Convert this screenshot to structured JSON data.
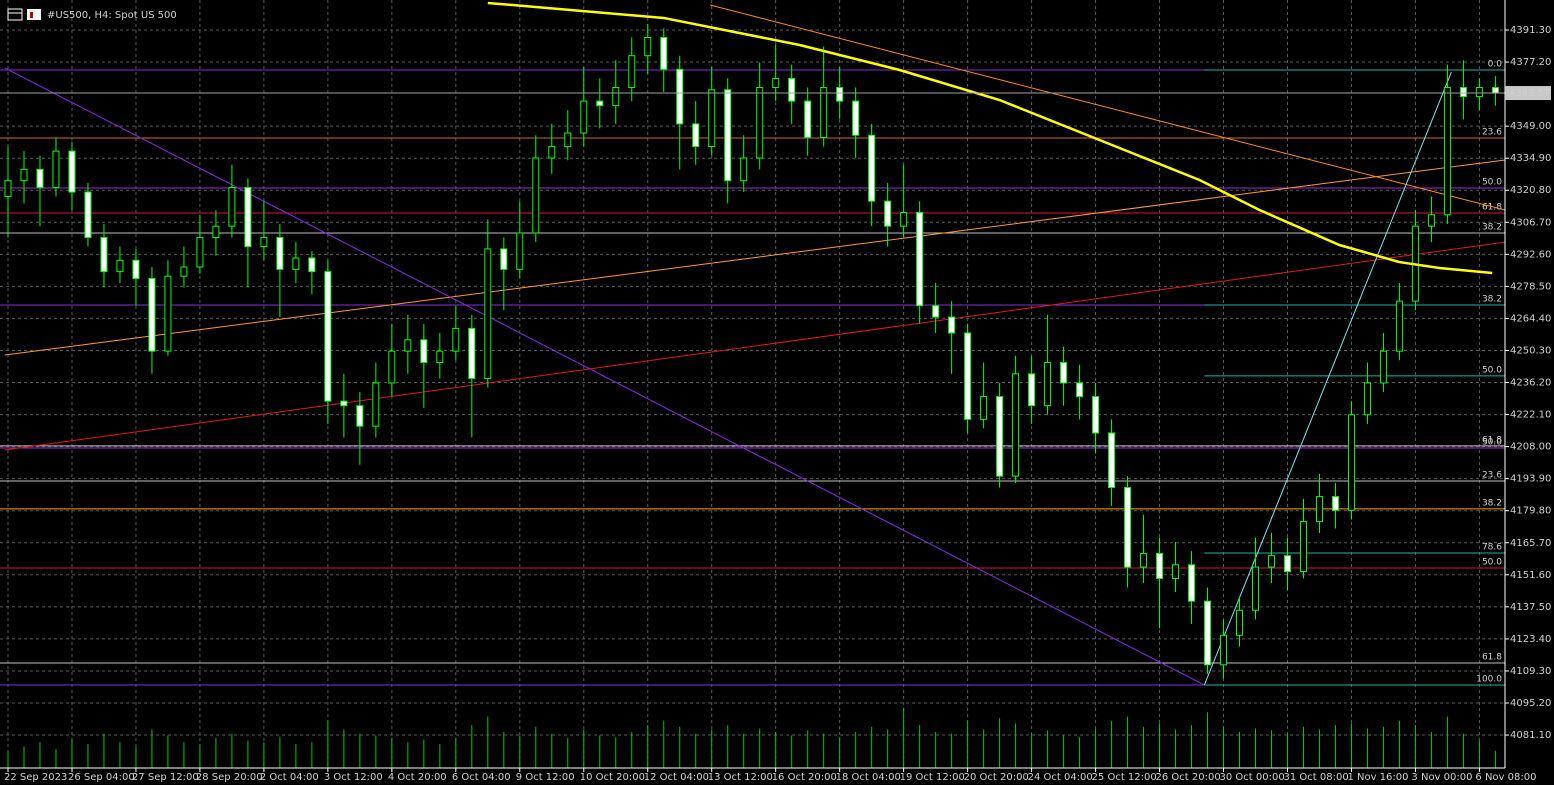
{
  "chart_data": {
    "type": "candlestick",
    "title": "#US500, H4:  Spot US 500",
    "xlim": [
      -0.5,
      93.6
    ],
    "ylim": [
      4066.6,
      4404.5
    ],
    "grid": true,
    "bull_fill": "#000000",
    "bear_fill": "#ffffff",
    "wick_color": "#00ff00",
    "volume_color": "#00c800",
    "current_price": 4363.57,
    "xticks": [
      {
        "value": 0,
        "label": "22 Sep 2023"
      },
      {
        "value": 4,
        "label": "26 Sep 04:00"
      },
      {
        "value": 8,
        "label": "27 Sep 12:00"
      },
      {
        "value": 12,
        "label": "28 Sep 20:00"
      },
      {
        "value": 16,
        "label": "2 Oct 04:00"
      },
      {
        "value": 20,
        "label": "3 Oct 12:00"
      },
      {
        "value": 24,
        "label": "4 Oct 20:00"
      },
      {
        "value": 28,
        "label": "6 Oct 04:00"
      },
      {
        "value": 32,
        "label": "9 Oct 12:00"
      },
      {
        "value": 36,
        "label": "10 Oct 20:00"
      },
      {
        "value": 40,
        "label": "12 Oct 04:00"
      },
      {
        "value": 44,
        "label": "13 Oct 12:00"
      },
      {
        "value": 48,
        "label": "16 Oct 20:00"
      },
      {
        "value": 52,
        "label": "18 Oct 04:00"
      },
      {
        "value": 56,
        "label": "19 Oct 12:00"
      },
      {
        "value": 60,
        "label": "20 Oct 20:00"
      },
      {
        "value": 64,
        "label": "24 Oct 04:00"
      },
      {
        "value": 68,
        "label": "25 Oct 12:00"
      },
      {
        "value": 72,
        "label": "26 Oct 20:00"
      },
      {
        "value": 76,
        "label": "30 Oct 00:00"
      },
      {
        "value": 80,
        "label": "31 Oct 08:00"
      },
      {
        "value": 84,
        "label": "1 Nov 16:00"
      },
      {
        "value": 88,
        "label": "3 Nov 00:00"
      },
      {
        "value": 92,
        "label": "6 Nov 08:00"
      }
    ],
    "yticks": [
      {
        "value": 4391.3,
        "label": "4391.30"
      },
      {
        "value": 4377.2,
        "label": "4377.20"
      },
      {
        "value": 4349,
        "label": "4349.00"
      },
      {
        "value": 4334.9,
        "label": "4334.90"
      },
      {
        "value": 4320.8,
        "label": "4320.80"
      },
      {
        "value": 4306.7,
        "label": "4306.70"
      },
      {
        "value": 4292.6,
        "label": "4292.60"
      },
      {
        "value": 4278.5,
        "label": "4278.50"
      },
      {
        "value": 4264.4,
        "label": "4264.40"
      },
      {
        "value": 4250.3,
        "label": "4250.30"
      },
      {
        "value": 4236.2,
        "label": "4236.20"
      },
      {
        "value": 4222.1,
        "label": "4222.10"
      },
      {
        "value": 4208,
        "label": "4208.00"
      },
      {
        "value": 4193.9,
        "label": "4193.90"
      },
      {
        "value": 4179.8,
        "label": "4179.80"
      },
      {
        "value": 4165.7,
        "label": "4165.70"
      },
      {
        "value": 4151.6,
        "label": "4151.60"
      },
      {
        "value": 4137.5,
        "label": "4137.50"
      },
      {
        "value": 4123.4,
        "label": "4123.40"
      },
      {
        "value": 4109.3,
        "label": "4109.30"
      },
      {
        "value": 4095.2,
        "label": "4095.20"
      },
      {
        "value": 4081.1,
        "label": "4081.10"
      }
    ],
    "candles": [
      [
        4318,
        4340,
        4300,
        4325
      ],
      [
        4325,
        4338,
        4315,
        4330
      ],
      [
        4330,
        4336,
        4305,
        4322
      ],
      [
        4322,
        4344,
        4318,
        4338
      ],
      [
        4338,
        4342,
        4312,
        4320
      ],
      [
        4320,
        4324,
        4296,
        4300
      ],
      [
        4300,
        4306,
        4278,
        4285
      ],
      [
        4285,
        4296,
        4280,
        4290
      ],
      [
        4290,
        4295,
        4270,
        4282
      ],
      [
        4282,
        4287,
        4240,
        4250
      ],
      [
        4250,
        4290,
        4248,
        4283
      ],
      [
        4283,
        4296,
        4278,
        4287
      ],
      [
        4287,
        4310,
        4284,
        4300
      ],
      [
        4300,
        4312,
        4292,
        4305
      ],
      [
        4305,
        4332,
        4300,
        4322
      ],
      [
        4322,
        4326,
        4278,
        4296
      ],
      [
        4296,
        4316,
        4290,
        4300
      ],
      [
        4300,
        4306,
        4265,
        4286
      ],
      [
        4286,
        4298,
        4280,
        4291
      ],
      [
        4291,
        4294,
        4275,
        4285
      ],
      [
        4285,
        4290,
        4218,
        4228
      ],
      [
        4228,
        4240,
        4212,
        4226
      ],
      [
        4226,
        4232,
        4200,
        4217
      ],
      [
        4217,
        4245,
        4212,
        4236
      ],
      [
        4236,
        4262,
        4230,
        4250
      ],
      [
        4250,
        4266,
        4240,
        4255
      ],
      [
        4255,
        4262,
        4225,
        4245
      ],
      [
        4245,
        4258,
        4238,
        4250
      ],
      [
        4250,
        4270,
        4246,
        4260
      ],
      [
        4260,
        4266,
        4212,
        4238
      ],
      [
        4238,
        4308,
        4234,
        4295
      ],
      [
        4295,
        4300,
        4268,
        4286
      ],
      [
        4286,
        4316,
        4282,
        4302
      ],
      [
        4302,
        4345,
        4298,
        4335
      ],
      [
        4335,
        4350,
        4328,
        4340
      ],
      [
        4340,
        4356,
        4334,
        4346
      ],
      [
        4346,
        4375,
        4340,
        4360
      ],
      [
        4360,
        4370,
        4348,
        4358
      ],
      [
        4358,
        4378,
        4350,
        4366
      ],
      [
        4366,
        4388,
        4360,
        4380
      ],
      [
        4380,
        4394,
        4372,
        4388
      ],
      [
        4388,
        4392,
        4364,
        4374
      ],
      [
        4374,
        4380,
        4330,
        4350
      ],
      [
        4350,
        4360,
        4332,
        4340
      ],
      [
        4340,
        4375,
        4336,
        4365
      ],
      [
        4365,
        4370,
        4315,
        4325
      ],
      [
        4325,
        4345,
        4320,
        4335
      ],
      [
        4335,
        4377,
        4330,
        4366
      ],
      [
        4366,
        4385,
        4360,
        4370
      ],
      [
        4370,
        4376,
        4350,
        4360
      ],
      [
        4360,
        4366,
        4336,
        4344
      ],
      [
        4344,
        4384,
        4340,
        4366
      ],
      [
        4366,
        4375,
        4352,
        4360
      ],
      [
        4360,
        4366,
        4335,
        4345
      ],
      [
        4345,
        4350,
        4305,
        4316
      ],
      [
        4316,
        4324,
        4296,
        4305
      ],
      [
        4305,
        4332,
        4300,
        4311
      ],
      [
        4311,
        4316,
        4262,
        4270
      ],
      [
        4270,
        4280,
        4258,
        4265
      ],
      [
        4265,
        4272,
        4240,
        4258
      ],
      [
        4258,
        4262,
        4214,
        4220
      ],
      [
        4220,
        4245,
        4216,
        4230
      ],
      [
        4230,
        4236,
        4190,
        4195
      ],
      [
        4195,
        4248,
        4192,
        4240
      ],
      [
        4240,
        4248,
        4218,
        4226
      ],
      [
        4226,
        4266,
        4222,
        4245
      ],
      [
        4245,
        4252,
        4226,
        4236
      ],
      [
        4236,
        4244,
        4220,
        4230
      ],
      [
        4230,
        4236,
        4205,
        4214
      ],
      [
        4214,
        4220,
        4182,
        4190
      ],
      [
        4190,
        4195,
        4146,
        4155
      ],
      [
        4155,
        4178,
        4148,
        4161
      ],
      [
        4161,
        4168,
        4128,
        4150
      ],
      [
        4150,
        4166,
        4144,
        4156
      ],
      [
        4156,
        4162,
        4130,
        4140
      ],
      [
        4140,
        4146,
        4108,
        4112
      ],
      [
        4112,
        4132,
        4106,
        4125
      ],
      [
        4125,
        4142,
        4120,
        4136
      ],
      [
        4136,
        4168,
        4132,
        4155
      ],
      [
        4155,
        4170,
        4148,
        4160
      ],
      [
        4160,
        4168,
        4145,
        4153
      ],
      [
        4153,
        4185,
        4150,
        4175
      ],
      [
        4175,
        4196,
        4170,
        4186
      ],
      [
        4186,
        4192,
        4172,
        4180
      ],
      [
        4180,
        4228,
        4176,
        4222
      ],
      [
        4222,
        4245,
        4218,
        4236
      ],
      [
        4236,
        4258,
        4232,
        4250
      ],
      [
        4250,
        4280,
        4246,
        4272
      ],
      [
        4272,
        4312,
        4268,
        4305
      ],
      [
        4305,
        4318,
        4298,
        4310
      ],
      [
        4310,
        4376,
        4306,
        4366
      ],
      [
        4366,
        4378,
        4352,
        4362
      ],
      [
        4362,
        4370,
        4356,
        4366
      ],
      [
        4366,
        4371,
        4358,
        4363.57
      ]
    ],
    "volumes": [
      20,
      25,
      30,
      22,
      35,
      28,
      40,
      30,
      25,
      45,
      38,
      30,
      28,
      35,
      40,
      32,
      30,
      36,
      28,
      30,
      55,
      45,
      40,
      38,
      35,
      30,
      33,
      28,
      35,
      50,
      60,
      42,
      38,
      48,
      40,
      35,
      45,
      38,
      36,
      42,
      50,
      55,
      48,
      40,
      45,
      50,
      40,
      46,
      42,
      38,
      44,
      40,
      36,
      42,
      48,
      45,
      70,
      50,
      42,
      40,
      55,
      45,
      58,
      52,
      40,
      44,
      38,
      36,
      46,
      55,
      60,
      48,
      52,
      45,
      50,
      65,
      48,
      42,
      46,
      44,
      40,
      48,
      45,
      50,
      52,
      46,
      48,
      55,
      50,
      42,
      60,
      40,
      32,
      20
    ],
    "moving_average": {
      "color": "#ffff00",
      "x": [
        30,
        41,
        49.5,
        55.75,
        62,
        68.25,
        74.5,
        78.25,
        83.25,
        87,
        89.5,
        92.8
      ],
      "values": [
        4403.2,
        4396.6,
        4384.7,
        4373.7,
        4360.5,
        4342.9,
        4325.3,
        4312.1,
        4296.7,
        4289.2,
        4286.6,
        4284.4
      ]
    },
    "trendlines": [
      {
        "color": "#ff9933",
        "points": [
          [
            -0.2,
            4248.3
          ],
          [
            93.6,
            4334.1
          ]
        ]
      },
      {
        "color": "#ff8c1a",
        "points": [
          [
            43.9,
            4402.3
          ],
          [
            93.6,
            4312.1
          ]
        ]
      },
      {
        "color": "#e01818",
        "points": [
          [
            -0.2,
            4206.5
          ],
          [
            93.6,
            4298.0
          ]
        ]
      },
      {
        "color": "#8a2be2",
        "points": [
          [
            -0.2,
            4374.6
          ],
          [
            74.8,
            4103.1
          ]
        ]
      },
      {
        "color": "#7fe5f0",
        "points": [
          [
            74.8,
            4103.1
          ],
          [
            90.25,
            4372.8
          ]
        ]
      }
    ],
    "levels": [
      {
        "price": 4373.7,
        "color": "#8a2be2"
      },
      {
        "price": 4373.7,
        "color": "#20b2aa",
        "label": "0.0",
        "from": 74.8
      },
      {
        "price": 4343.8,
        "color": "#d2691e",
        "label": "23.6"
      },
      {
        "price": 4321.8,
        "color": "#9932cc",
        "label": "50.0"
      },
      {
        "price": 4310.8,
        "color": "#dc143c",
        "label": "61.8"
      },
      {
        "price": 4302.0,
        "color": "#c0c0c0",
        "label": "38.2"
      },
      {
        "price": 4270.3,
        "color": "#8a2be2"
      },
      {
        "price": 4270.3,
        "color": "#20b2aa",
        "label": "38.2",
        "from": 74.8
      },
      {
        "price": 4239.1,
        "color": "#20b2aa",
        "label": "50.0",
        "from": 74.8
      },
      {
        "price": 4207.4,
        "color": "#9932cc",
        "label": "50.0"
      },
      {
        "price": 4208.3,
        "color": "#c0c0c0",
        "label": "61.8"
      },
      {
        "price": 4192.9,
        "color": "#c0c0c0",
        "label": "23.6"
      },
      {
        "price": 4180.6,
        "color": "#ffa500",
        "label": "38.2"
      },
      {
        "price": 4161.2,
        "color": "#20b2aa",
        "label": "78.6",
        "from": 74.8
      },
      {
        "price": 4154.6,
        "color": "#dc143c",
        "label": "50.0"
      },
      {
        "price": 4112.8,
        "color": "#c0c0c0",
        "label": "61.8"
      },
      {
        "price": 4103.1,
        "color": "#8a2be2"
      },
      {
        "price": 4103.1,
        "color": "#20b2aa",
        "label": "100.0",
        "from": 74.8
      }
    ]
  }
}
